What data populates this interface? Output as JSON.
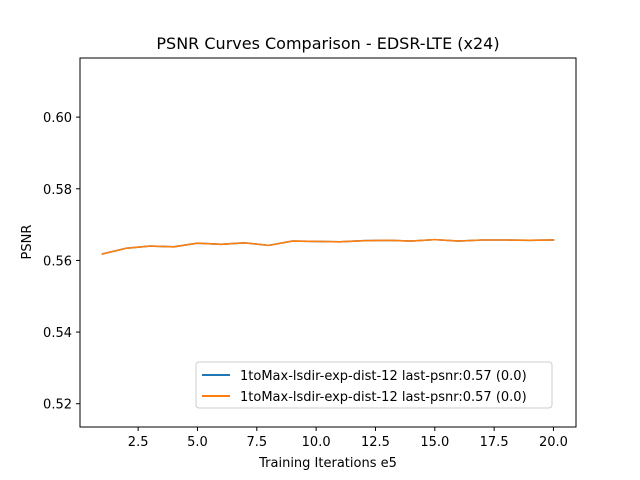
{
  "chart_data": {
    "type": "line",
    "title": "PSNR Curves Comparison - EDSR-LTE (x24)",
    "xlabel": "Training Iterations e5",
    "ylabel": "PSNR",
    "xlim": [
      0.05,
      20.95
    ],
    "ylim": [
      0.5135,
      0.6165
    ],
    "xticks": [
      2.5,
      5.0,
      7.5,
      10.0,
      12.5,
      15.0,
      17.5,
      20.0
    ],
    "xtick_labels": [
      "2.5",
      "5.0",
      "7.5",
      "10.0",
      "12.5",
      "15.0",
      "17.5",
      "20.0"
    ],
    "yticks": [
      0.52,
      0.54,
      0.56,
      0.58,
      0.6
    ],
    "ytick_labels": [
      "0.52",
      "0.54",
      "0.56",
      "0.58",
      "0.60"
    ],
    "grid": false,
    "legend_position": "lower-right",
    "x": [
      1,
      2,
      3,
      4,
      5,
      6,
      7,
      8,
      9,
      10,
      11,
      12,
      13,
      14,
      15,
      16,
      17,
      18,
      19,
      20
    ],
    "series": [
      {
        "name": "1toMax-lsdir-exp-dist-12 last-psnr:0.57 (0.0)",
        "color": "#1f77b4",
        "values": [
          0.5618,
          0.5634,
          0.564,
          0.5638,
          0.5648,
          0.5645,
          0.5649,
          0.5642,
          0.5654,
          0.5653,
          0.5652,
          0.5655,
          0.5656,
          0.5654,
          0.5658,
          0.5654,
          0.5657,
          0.5657,
          0.5656,
          0.5657
        ]
      },
      {
        "name": "1toMax-lsdir-exp-dist-12 last-psnr:0.57 (0.0)",
        "color": "#ff7f0e",
        "values": [
          0.5618,
          0.5634,
          0.564,
          0.5638,
          0.5648,
          0.5645,
          0.5649,
          0.5642,
          0.5654,
          0.5653,
          0.5652,
          0.5655,
          0.5656,
          0.5654,
          0.5658,
          0.5654,
          0.5657,
          0.5657,
          0.5656,
          0.5657
        ]
      }
    ]
  }
}
